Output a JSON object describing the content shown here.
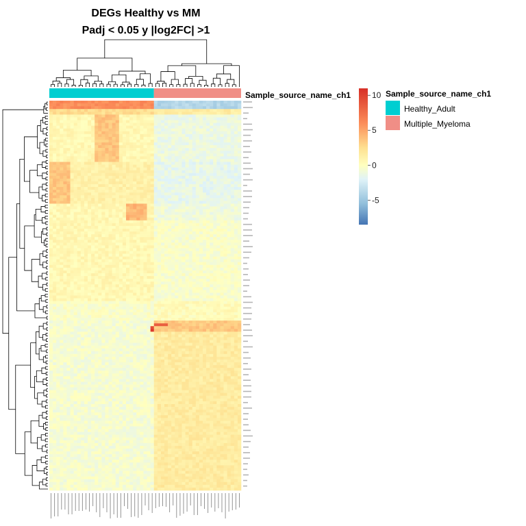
{
  "chart_data": {
    "type": "heatmap",
    "title": "DEGs Healthy vs MM",
    "subtitle": "Padj < 0.05 y |log2FC| >1",
    "annotation": {
      "name": "Sample_source_name_ch1",
      "legend_title": "Sample_source_name_ch1",
      "levels": [
        {
          "label": "Healthy_Adult",
          "color": "#00CED1",
          "count": 30
        },
        {
          "label": "Multiple_Myeloma",
          "color": "#F08E86",
          "count": 25
        }
      ]
    },
    "colorbar": {
      "ticks": [
        "10",
        "5",
        "0",
        "-5"
      ],
      "tick_values": [
        10,
        5,
        0,
        -5
      ],
      "range": [
        -8.5,
        11
      ],
      "colors": [
        "#4575B4",
        "#91BFDB",
        "#E0F3F8",
        "#FFFFBF",
        "#FEE090",
        "#FC8D59",
        "#D73027"
      ]
    },
    "n_samples": 55,
    "n_genes": 140,
    "blocks": [
      {
        "genes": [
          0,
          3
        ],
        "ha": 6.0,
        "mm": -4.0
      },
      {
        "genes": [
          3,
          5
        ],
        "ha": 2.5,
        "mm": 1.5
      },
      {
        "genes": [
          5,
          22
        ],
        "ha": 0.6,
        "mm": -1.2,
        "ha_hot": [
          13,
          20
        ],
        "ha_hot_val": 3.6
      },
      {
        "genes": [
          22,
          37
        ],
        "ha": 1.2,
        "mm": -1.5,
        "ha_hot": [
          0,
          6
        ],
        "ha_hot_val": 3.6
      },
      {
        "genes": [
          37,
          43
        ],
        "ha": 0.6,
        "mm": -1.0,
        "ha_hot": [
          22,
          28
        ],
        "ha_hot_val": 4.2
      },
      {
        "genes": [
          43,
          72
        ],
        "ha": 0.6,
        "mm": -0.4
      },
      {
        "genes": [
          72,
          79
        ],
        "ha": -0.3,
        "mm": 0.3
      },
      {
        "genes": [
          79,
          83
        ],
        "ha": -0.6,
        "mm": 3.5
      },
      {
        "genes": [
          83,
          140
        ],
        "ha": -0.6,
        "mm": 1.6
      }
    ]
  }
}
